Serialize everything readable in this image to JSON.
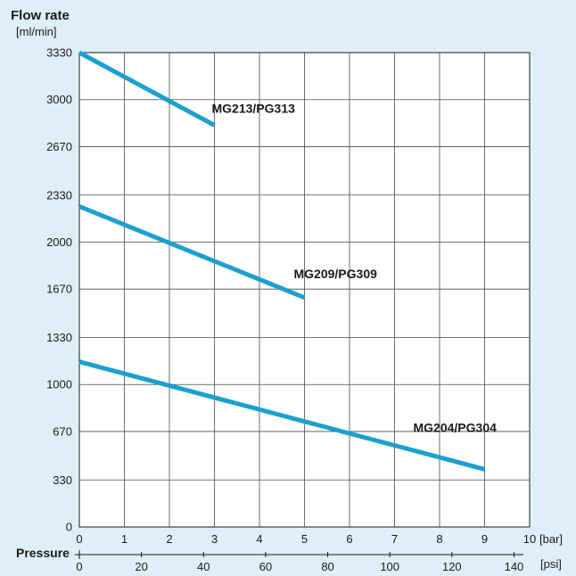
{
  "chart_data": {
    "type": "line",
    "title": "",
    "ylabel": "Flow rate",
    "yunit": "[ml/min]",
    "xlabel": "Pressure",
    "x_unit_bar": "[bar]",
    "x_unit_psi": "[psi]",
    "xlim_bar": [
      0,
      10
    ],
    "ylim": [
      0,
      3330
    ],
    "y_ticks": [
      "0",
      "330",
      "670",
      "1000",
      "1330",
      "1670",
      "2000",
      "2330",
      "2670",
      "3000",
      "3330"
    ],
    "x_ticks_bar": [
      "0",
      "1",
      "2",
      "3",
      "4",
      "5",
      "6",
      "7",
      "8",
      "9",
      "10"
    ],
    "x_ticks_psi": [
      "0",
      "20",
      "40",
      "60",
      "80",
      "100",
      "120",
      "140"
    ],
    "grid": true,
    "line_color": "#1ba0cf",
    "series": [
      {
        "name": "MG213/PG313",
        "x": [
          0,
          3
        ],
        "y": [
          3330,
          2820
        ]
      },
      {
        "name": "MG209/PG309",
        "x": [
          0,
          5
        ],
        "y": [
          2250,
          1610
        ]
      },
      {
        "name": "MG204/PG304",
        "x": [
          0,
          9
        ],
        "y": [
          1160,
          405
        ]
      }
    ]
  }
}
